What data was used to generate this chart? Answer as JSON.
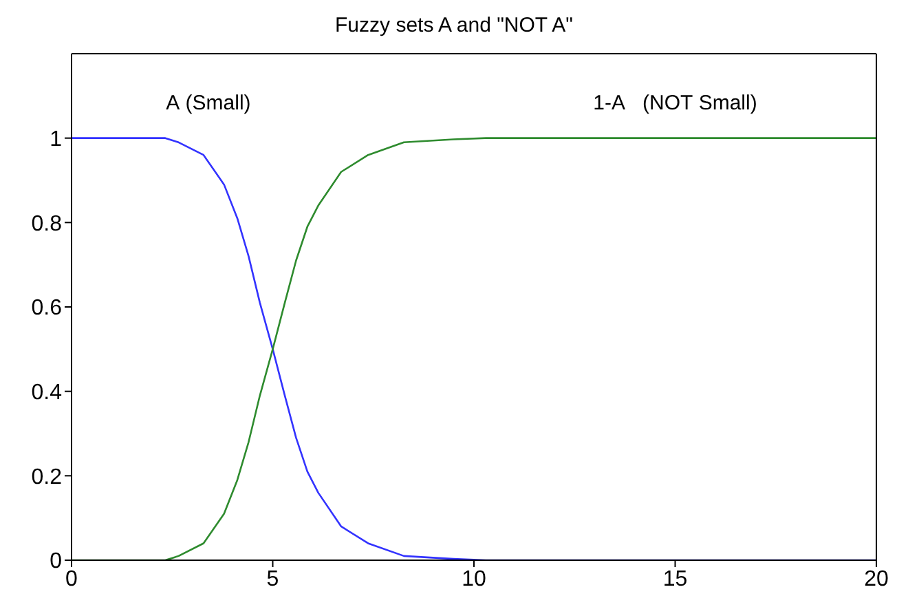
{
  "chart_data": {
    "type": "line",
    "title": "Fuzzy sets A and \"NOT A\"",
    "xlim": [
      0,
      20
    ],
    "xticks": [
      0,
      5,
      10,
      15,
      20
    ],
    "ylim": [
      0,
      1.2
    ],
    "yticks": [
      0,
      0.2,
      0.4,
      0.6,
      0.8,
      1
    ],
    "legend": false,
    "marker": "none",
    "line_style": "solid",
    "series": [
      {
        "name": "A (Small)",
        "color": "#3333ff",
        "x": [
          0,
          2.33,
          2.66,
          3.28,
          3.79,
          4.12,
          4.4,
          4.68,
          5,
          5.3,
          5.58,
          5.86,
          6.13,
          6.7,
          7.37,
          8.26,
          9.49,
          10.3,
          20
        ],
        "values": [
          1,
          1,
          0.99,
          0.96,
          0.89,
          0.81,
          0.72,
          0.61,
          0.5,
          0.39,
          0.29,
          0.21,
          0.16,
          0.08,
          0.04,
          0.01,
          0.003,
          0,
          0
        ]
      },
      {
        "name": "1-A   (NOT Small)",
        "color": "#2e8b2e",
        "x": [
          0,
          2.33,
          2.66,
          3.28,
          3.79,
          4.12,
          4.4,
          4.68,
          5,
          5.3,
          5.58,
          5.86,
          6.13,
          6.7,
          7.37,
          8.26,
          9.49,
          10.3,
          20
        ],
        "values": [
          0,
          0,
          0.01,
          0.04,
          0.11,
          0.19,
          0.28,
          0.39,
          0.5,
          0.61,
          0.71,
          0.79,
          0.84,
          0.92,
          0.96,
          0.99,
          0.997,
          1,
          1
        ]
      }
    ]
  }
}
